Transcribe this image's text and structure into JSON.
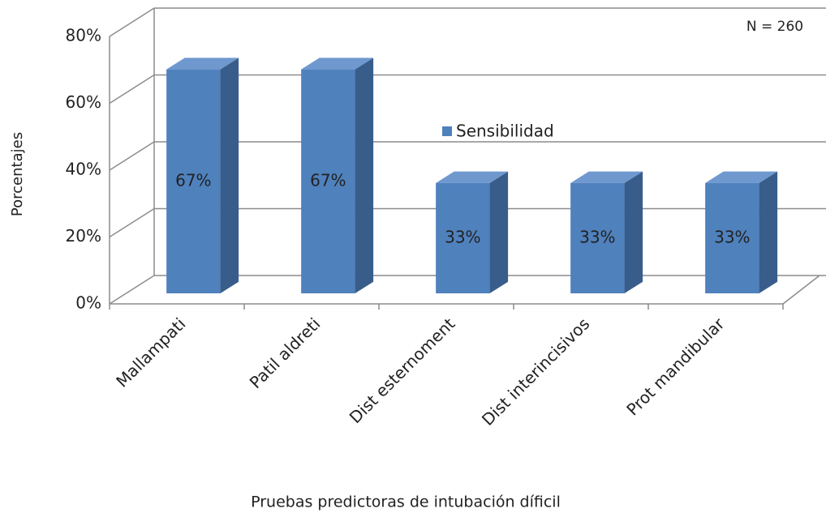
{
  "chart_data": {
    "type": "bar3d",
    "categories": [
      "Mallampati",
      "Patil aldreti",
      "Dist esternoment",
      "Dist interincisivos",
      "Prot mandibular"
    ],
    "series": [
      {
        "name": "Sensibilidad",
        "color": "#4f81bd",
        "values": [
          67,
          67,
          33,
          33,
          33
        ],
        "value_labels": [
          "67%",
          "67%",
          "33%",
          "33%",
          "33%"
        ]
      }
    ],
    "ylim": [
      0,
      80
    ],
    "yticks": [
      {
        "value": 0,
        "label": "0%"
      },
      {
        "value": 20,
        "label": "20%"
      },
      {
        "value": 40,
        "label": "40%"
      },
      {
        "value": 60,
        "label": "60%"
      },
      {
        "value": 80,
        "label": "80%"
      }
    ],
    "grid": true,
    "xlabel": "Pruebas predictoras de intubación díficil",
    "ylabel": "Porcentajes",
    "annotation": "N = 260"
  }
}
